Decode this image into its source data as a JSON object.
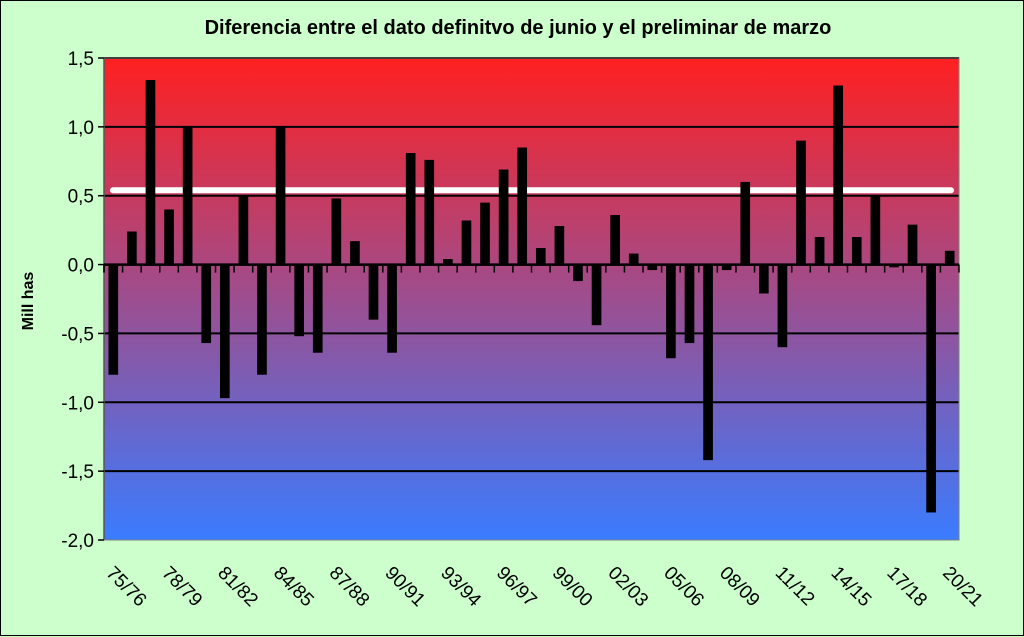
{
  "chart_data": {
    "type": "bar",
    "title": "Diferencia entre el dato definitvo  de junio y el preliminar  de marzo",
    "ylabel": "Mill has",
    "xlabel": "",
    "ylim": [
      -2.0,
      1.5
    ],
    "yticks": [
      1.5,
      1.0,
      0.5,
      0.0,
      -0.5,
      -1.0,
      -1.5,
      -2.0
    ],
    "ytick_labels": [
      "1,5",
      "1,0",
      "0,5",
      "0,0",
      "-0,5",
      "-1,0",
      "-1,5",
      "-2,0"
    ],
    "grid": true,
    "background_gradient": [
      "#ff2020",
      "#3a7cff"
    ],
    "bar_color": "#000000",
    "reference_line": {
      "value": 0.54,
      "color": "#ffffff"
    },
    "categories": [
      "75/76",
      "76/77",
      "77/78",
      "78/79",
      "79/80",
      "80/81",
      "81/82",
      "82/83",
      "83/84",
      "84/85",
      "85/86",
      "86/87",
      "87/88",
      "88/89",
      "89/90",
      "90/91",
      "91/92",
      "92/93",
      "93/94",
      "94/95",
      "95/96",
      "96/97",
      "97/98",
      "98/99",
      "99/00",
      "00/01",
      "01/02",
      "02/03",
      "03/04",
      "04/05",
      "05/06",
      "06/07",
      "07/08",
      "08/09",
      "09/10",
      "10/11",
      "11/12",
      "12/13",
      "13/14",
      "14/15",
      "15/16",
      "16/17",
      "17/18",
      "18/19",
      "19/20",
      "20/21"
    ],
    "tick_labels": [
      "75/76",
      "78/79",
      "81/82",
      "84/85",
      "87/88",
      "90/91",
      "93/94",
      "96/97",
      "99/00",
      "02/03",
      "05/06",
      "08/09",
      "11/12",
      "14/15",
      "17/18",
      "20/21"
    ],
    "values": [
      -0.8,
      0.24,
      1.34,
      0.4,
      1.0,
      -0.57,
      -0.97,
      0.5,
      -0.8,
      1.0,
      -0.52,
      -0.64,
      0.48,
      0.17,
      -0.4,
      -0.64,
      0.81,
      0.76,
      0.04,
      0.32,
      0.45,
      0.69,
      0.85,
      0.12,
      0.28,
      -0.12,
      -0.44,
      0.36,
      0.08,
      -0.04,
      -0.68,
      -0.57,
      -1.42,
      -0.04,
      0.6,
      -0.21,
      -0.6,
      0.9,
      0.2,
      1.3,
      0.2,
      0.5,
      -0.02,
      0.29,
      -1.8,
      0.1
    ]
  }
}
